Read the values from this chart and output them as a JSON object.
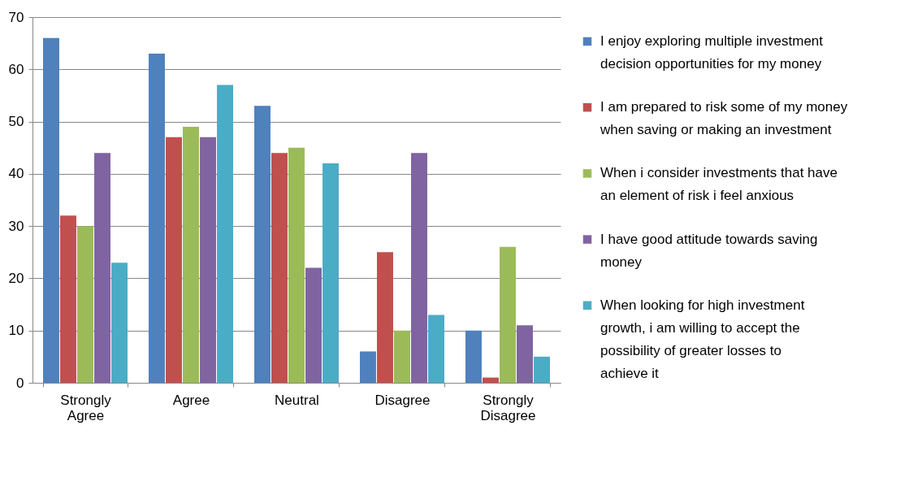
{
  "chart_data": {
    "type": "bar",
    "categories": [
      "Strongly Agree",
      "Agree",
      "Neutral",
      "Disagree",
      "Strongly Disagree"
    ],
    "series": [
      {
        "name": "I enjoy exploring multiple investment decision opportunities for my money",
        "color": "#4f81bd",
        "values": [
          66,
          63,
          53,
          6,
          10
        ]
      },
      {
        "name": "I am prepared to risk some of my money when saving or making an investment",
        "color": "#c0504d",
        "values": [
          32,
          47,
          44,
          25,
          1
        ]
      },
      {
        "name": "When i consider investments that have an element of risk i feel anxious",
        "color": "#9bbb59",
        "values": [
          30,
          49,
          45,
          10,
          26
        ]
      },
      {
        "name": "I have good attitude towards saving money",
        "color": "#8064a2",
        "values": [
          44,
          47,
          22,
          44,
          11
        ]
      },
      {
        "name": "When looking for high investment growth, i am willing to accept the possibility of greater losses to achieve it",
        "color": "#4bacc6",
        "values": [
          23,
          57,
          42,
          13,
          5
        ]
      }
    ],
    "ylim": [
      0,
      70
    ],
    "yticks": [
      0,
      10,
      20,
      30,
      40,
      50,
      60,
      70
    ],
    "grid": "y",
    "legend": "right"
  }
}
